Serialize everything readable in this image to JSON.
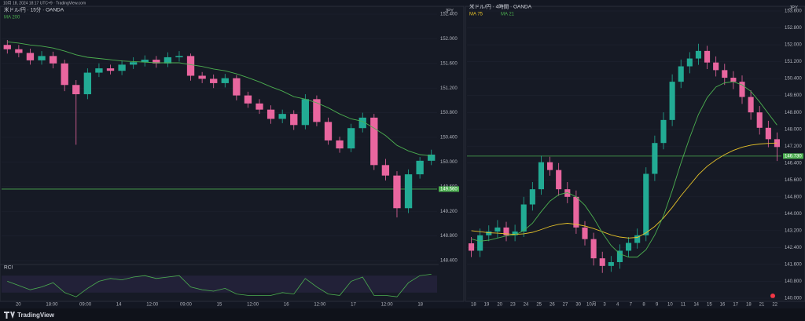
{
  "header": {
    "snapshot": "10月 18, 2024 18:17 UTC+9 · TradingView.com",
    "brand": "TradingView"
  },
  "chart_data": [
    {
      "type": "candlestick",
      "title": "米ドル/円 · 15分 · OANDA",
      "currency": "JPY",
      "up_color": "#22ab94",
      "down_color": "#e9669f",
      "open": [
        151.9,
        151.83,
        151.77,
        151.65,
        151.72,
        151.6,
        151.25,
        151.1,
        151.45,
        151.52,
        151.48,
        151.58,
        151.62,
        151.66,
        151.6,
        151.7,
        151.72,
        151.4,
        151.35,
        151.28,
        151.36,
        151.08,
        150.95,
        150.85,
        150.7,
        150.78,
        150.6,
        151.02,
        150.65,
        150.35,
        150.22,
        150.55,
        150.72,
        149.95,
        149.78,
        149.25,
        149.8,
        150.02
      ],
      "high": [
        151.98,
        151.9,
        151.84,
        151.8,
        151.79,
        151.66,
        151.33,
        151.52,
        151.6,
        151.58,
        151.65,
        151.7,
        151.73,
        151.72,
        151.78,
        151.8,
        151.76,
        151.46,
        151.42,
        151.43,
        151.41,
        151.14,
        151.02,
        150.92,
        150.85,
        150.84,
        151.1,
        151.08,
        150.72,
        150.41,
        150.62,
        150.8,
        150.78,
        150.05,
        149.85,
        149.88,
        150.08,
        150.2
      ],
      "low": [
        151.76,
        151.7,
        151.58,
        151.58,
        151.52,
        151.15,
        150.28,
        151.02,
        151.38,
        151.42,
        151.41,
        151.51,
        151.55,
        151.53,
        151.54,
        151.63,
        151.32,
        151.28,
        151.2,
        151.21,
        151.0,
        150.88,
        150.78,
        150.62,
        150.63,
        150.52,
        150.53,
        150.58,
        150.28,
        150.15,
        150.16,
        150.48,
        149.87,
        149.7,
        149.1,
        149.17,
        149.73,
        149.95
      ],
      "close": [
        151.83,
        151.77,
        151.65,
        151.72,
        151.6,
        151.25,
        151.1,
        151.45,
        151.52,
        151.48,
        151.58,
        151.62,
        151.66,
        151.6,
        151.7,
        151.72,
        151.4,
        151.35,
        151.28,
        151.36,
        151.08,
        150.95,
        150.85,
        150.7,
        150.78,
        150.6,
        151.02,
        150.65,
        150.35,
        150.22,
        150.55,
        150.72,
        149.95,
        149.78,
        149.25,
        149.8,
        150.02,
        150.12
      ],
      "series": [
        {
          "name": "MA 200",
          "color": "#4caf50",
          "values": [
            151.95,
            151.93,
            151.9,
            151.88,
            151.85,
            151.8,
            151.74,
            151.7,
            151.68,
            151.66,
            151.64,
            151.63,
            151.62,
            151.61,
            151.61,
            151.61,
            151.58,
            151.55,
            151.51,
            151.48,
            151.43,
            151.37,
            151.3,
            151.22,
            151.15,
            151.06,
            151.02,
            150.96,
            150.88,
            150.78,
            150.7,
            150.66,
            150.55,
            150.43,
            150.27,
            150.18,
            150.12,
            150.1
          ]
        }
      ],
      "hline": {
        "value": 149.56,
        "label": "149.560",
        "color": "#4caf50"
      },
      "ylim": [
        148.4,
        152.4
      ],
      "yticks": [
        {
          "value": 148.4,
          "label": "148.400"
        },
        {
          "value": 148.8,
          "label": "148.800"
        },
        {
          "value": 149.2,
          "label": "149.200"
        },
        {
          "value": 149.6,
          "label": "149.600"
        },
        {
          "value": 150.0,
          "label": "150.000"
        },
        {
          "value": 150.4,
          "label": "150.400"
        },
        {
          "value": 150.8,
          "label": "150.800"
        },
        {
          "value": 151.2,
          "label": "151.200"
        },
        {
          "value": 151.6,
          "label": "151.600"
        },
        {
          "value": 152.0,
          "label": "152.000"
        },
        {
          "value": 152.4,
          "label": "152.400"
        }
      ],
      "xtick_labels": [
        "20",
        "18:00",
        "09:00",
        "14",
        "12:00",
        "09:00",
        "15",
        "12:00",
        "16",
        "12:00",
        "17",
        "12:00",
        "18"
      ],
      "oscillator": {
        "name": "RCI",
        "color": "#4caf50",
        "ylim": [
          0,
          100
        ],
        "values": [
          60,
          45,
          30,
          40,
          55,
          20,
          5,
          35,
          60,
          70,
          65,
          75,
          80,
          70,
          75,
          80,
          40,
          30,
          25,
          35,
          15,
          10,
          10,
          10,
          20,
          15,
          70,
          40,
          15,
          10,
          60,
          75,
          10,
          10,
          5,
          55,
          80,
          85
        ]
      }
    },
    {
      "type": "candlestick",
      "title": "米ドル/円 · 4時間 · OANDA",
      "currency": "JPY",
      "up_color": "#22ab94",
      "down_color": "#e9669f",
      "open": [
        142.6,
        142.25,
        142.98,
        143.16,
        143.35,
        142.98,
        143.16,
        144.44,
        145.16,
        146.44,
        146.07,
        145.16,
        144.8,
        143.35,
        142.8,
        141.89,
        141.53,
        141.71,
        142.25,
        142.62,
        142.98,
        145.89,
        147.35,
        148.44,
        150.25,
        150.98,
        151.35,
        151.71,
        151.16,
        150.8,
        150.44,
        150.25,
        149.53,
        148.8,
        148.07,
        147.53
      ],
      "high": [
        142.9,
        143.3,
        143.45,
        143.7,
        143.62,
        143.48,
        144.8,
        145.5,
        146.75,
        146.7,
        146.4,
        145.5,
        145.1,
        143.65,
        143.1,
        142.2,
        142.0,
        142.55,
        142.9,
        143.3,
        146.2,
        147.7,
        148.8,
        150.6,
        151.3,
        151.65,
        152.05,
        151.95,
        151.45,
        151.1,
        150.75,
        150.55,
        149.85,
        149.1,
        148.4,
        147.85
      ],
      "low": [
        141.95,
        141.95,
        142.7,
        142.85,
        142.7,
        142.7,
        142.9,
        144.15,
        144.9,
        145.8,
        144.85,
        144.5,
        143.05,
        142.5,
        141.55,
        141.2,
        141.25,
        141.4,
        141.95,
        142.35,
        142.7,
        145.55,
        147.05,
        148.15,
        149.95,
        150.65,
        151.05,
        150.85,
        150.5,
        150.1,
        149.9,
        149.2,
        148.45,
        147.75,
        147.15,
        146.5
      ],
      "close": [
        142.25,
        142.98,
        143.16,
        143.35,
        142.98,
        143.16,
        144.44,
        145.16,
        146.44,
        146.07,
        145.16,
        144.8,
        143.35,
        142.8,
        141.89,
        141.53,
        141.71,
        142.25,
        142.62,
        142.98,
        145.89,
        147.35,
        148.44,
        150.25,
        150.98,
        151.35,
        151.71,
        151.16,
        150.8,
        150.44,
        150.25,
        149.53,
        148.8,
        148.07,
        147.53,
        147.16
      ],
      "series": [
        {
          "name": "MA 75",
          "color": "#e6c229",
          "values": [
            143.2,
            143.15,
            143.1,
            143.08,
            143.05,
            143.02,
            143.05,
            143.12,
            143.25,
            143.4,
            143.5,
            143.55,
            143.5,
            143.42,
            143.3,
            143.15,
            143.0,
            142.9,
            142.85,
            142.88,
            143.1,
            143.4,
            143.8,
            144.3,
            144.85,
            145.35,
            145.85,
            146.25,
            146.55,
            146.8,
            147.0,
            147.15,
            147.25,
            147.3,
            147.33,
            147.35
          ]
        },
        {
          "name": "MA 21",
          "color": "#4caf50",
          "values": [
            142.8,
            142.7,
            142.75,
            142.85,
            142.95,
            143.0,
            143.2,
            143.55,
            144.1,
            144.6,
            144.9,
            145.0,
            144.8,
            144.4,
            143.8,
            143.1,
            142.5,
            142.1,
            141.95,
            141.95,
            142.3,
            143.0,
            143.9,
            145.1,
            146.4,
            147.6,
            148.7,
            149.5,
            150.0,
            150.2,
            150.25,
            150.1,
            149.8,
            149.3,
            148.75,
            148.2
          ]
        }
      ],
      "hline": {
        "value": 146.73,
        "label": "146.730",
        "color": "#4caf50"
      },
      "ylim": [
        140.0,
        153.6
      ],
      "yticks": [
        {
          "value": 140.0,
          "label": "140.000"
        },
        {
          "value": 140.8,
          "label": "140.800"
        },
        {
          "value": 141.6,
          "label": "141.600"
        },
        {
          "value": 142.4,
          "label": "142.400"
        },
        {
          "value": 143.2,
          "label": "143.200"
        },
        {
          "value": 144.0,
          "label": "144.000"
        },
        {
          "value": 144.8,
          "label": "144.800"
        },
        {
          "value": 145.6,
          "label": "145.600"
        },
        {
          "value": 146.4,
          "label": "146.400"
        },
        {
          "value": 147.2,
          "label": "147.200"
        },
        {
          "value": 148.0,
          "label": "148.000"
        },
        {
          "value": 148.8,
          "label": "148.800"
        },
        {
          "value": 149.6,
          "label": "149.600"
        },
        {
          "value": 150.4,
          "label": "150.400"
        },
        {
          "value": 151.2,
          "label": "151.200"
        },
        {
          "value": 152.0,
          "label": "152.000"
        },
        {
          "value": 152.8,
          "label": "152.800"
        },
        {
          "value": 153.6,
          "label": "153.600"
        }
      ],
      "xtick_labels": [
        "18",
        "19",
        "20",
        "23",
        "24",
        "25",
        "26",
        "27",
        "30",
        "10月",
        "3",
        "4",
        "7",
        "8",
        "9",
        "10",
        "11",
        "14",
        "15",
        "16",
        "17",
        "18",
        "21",
        "22"
      ]
    }
  ]
}
